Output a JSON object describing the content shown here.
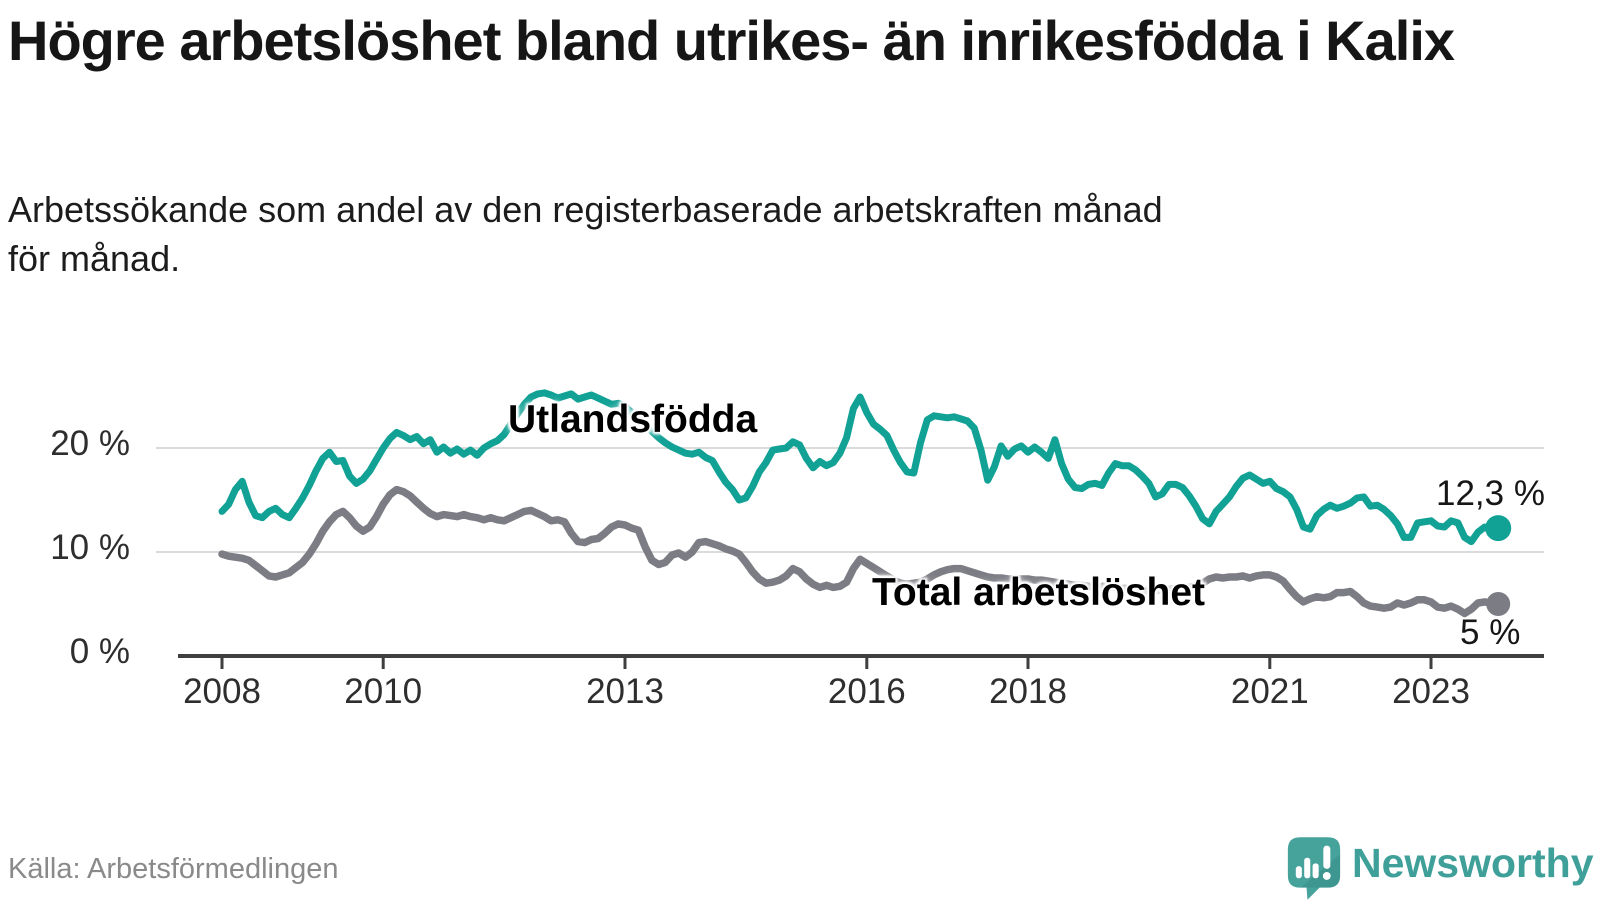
{
  "header": {
    "title": "Högre arbetslöshet bland utrikes- än inrikesfödda i Kalix",
    "subtitle_line1": "Arbetssökande som andel av den registerbaserade arbetskraften månad",
    "subtitle_line2": "för månad."
  },
  "footer": {
    "source": "Källa: Arbetsförmedlingen",
    "brand": "Newsworthy"
  },
  "colors": {
    "teal_line": "#12a195",
    "gray_line": "#7c7c84",
    "logo_teal": "#46a39c",
    "wordmark_teal": "#3f9f99",
    "gridline": "#dbdbdb",
    "axis": "#3f3f3f",
    "tick_text": "#2e2e2e",
    "title_text": "#161616",
    "source_text": "#8a8a8a"
  },
  "chart_data": {
    "type": "line",
    "title": "Högre arbetslöshet bland utrikes- än inrikesfödda i Kalix",
    "subtitle": "Arbetssökande som andel av den registerbaserade arbetskraften månad för månad.",
    "unit": "%",
    "frequency": "monthly",
    "x_start": "2008-01",
    "x_end": "2023-11",
    "ylim": [
      0,
      27.5
    ],
    "grid": "horizontal",
    "legend": "inline-labels",
    "y_ticks": [
      {
        "label": "0 %",
        "value": 0
      },
      {
        "label": "10 %",
        "value": 10
      },
      {
        "label": "20 %",
        "value": 20
      }
    ],
    "x_ticks": [
      {
        "label": "2008",
        "year": 2008
      },
      {
        "label": "2010",
        "year": 2010
      },
      {
        "label": "2013",
        "year": 2013
      },
      {
        "label": "2016",
        "year": 2016
      },
      {
        "label": "2018",
        "year": 2018
      },
      {
        "label": "2021",
        "year": 2021
      },
      {
        "label": "2023",
        "year": 2023
      }
    ],
    "series": [
      {
        "name": "Utlandsfödda",
        "color": "#12a195",
        "end_label": "12,3 %",
        "end_value": 12.3,
        "values": [
          13.9,
          14.6,
          16.0,
          16.8,
          14.8,
          13.5,
          13.3,
          13.9,
          14.2,
          13.6,
          13.3,
          14.2,
          15.2,
          16.4,
          17.8,
          19.0,
          19.6,
          18.7,
          18.8,
          17.3,
          16.6,
          17.0,
          17.8,
          18.9,
          20.0,
          20.9,
          21.5,
          21.2,
          20.8,
          21.1,
          20.4,
          20.8,
          19.6,
          20.1,
          19.5,
          19.9,
          19.4,
          19.8,
          19.3,
          20.0,
          20.4,
          20.7,
          21.3,
          22.3,
          23.3,
          24.2,
          24.9,
          25.2,
          25.3,
          25.1,
          24.8,
          25.0,
          25.2,
          24.7,
          24.9,
          25.1,
          24.8,
          24.5,
          24.2,
          24.3,
          24.0,
          23.4,
          22.8,
          22.2,
          21.6,
          21.0,
          20.5,
          20.1,
          19.8,
          19.5,
          19.4,
          19.6,
          19.1,
          18.8,
          17.7,
          16.7,
          16.0,
          15.0,
          15.2,
          16.3,
          17.7,
          18.6,
          19.8,
          19.9,
          20.0,
          20.6,
          20.3,
          19.0,
          18.1,
          18.7,
          18.3,
          18.6,
          19.5,
          21.0,
          23.8,
          24.9,
          23.4,
          22.3,
          21.8,
          21.2,
          19.8,
          18.6,
          17.7,
          17.6,
          20.5,
          22.7,
          23.1,
          23.0,
          22.9,
          23.0,
          22.8,
          22.6,
          21.9,
          19.8,
          16.9,
          18.2,
          20.2,
          19.2,
          19.9,
          20.2,
          19.6,
          20.1,
          19.6,
          19.0,
          20.8,
          18.5,
          17.0,
          16.2,
          16.1,
          16.5,
          16.6,
          16.4,
          17.6,
          18.5,
          18.3,
          18.3,
          17.9,
          17.3,
          16.6,
          15.3,
          15.6,
          16.5,
          16.5,
          16.2,
          15.4,
          14.4,
          13.2,
          12.7,
          13.9,
          14.6,
          15.3,
          16.3,
          17.1,
          17.4,
          17.0,
          16.6,
          16.8,
          16.1,
          15.8,
          15.3,
          14.1,
          12.4,
          12.2,
          13.5,
          14.1,
          14.5,
          14.2,
          14.4,
          14.7,
          15.2,
          15.3,
          14.4,
          14.5,
          14.1,
          13.5,
          12.7,
          11.4,
          11.4,
          12.8,
          12.9,
          13.0,
          12.5,
          12.4,
          13.0,
          12.8,
          11.4,
          11.0,
          11.9,
          12.4,
          12.1,
          12.3
        ]
      },
      {
        "name": "Total arbetslöshet",
        "color": "#7c7c84",
        "end_label": "5 %",
        "end_value": 5,
        "values": [
          9.8,
          9.6,
          9.5,
          9.4,
          9.2,
          8.7,
          8.2,
          7.7,
          7.6,
          7.8,
          8.0,
          8.5,
          9.0,
          9.8,
          10.8,
          12.0,
          12.9,
          13.6,
          13.9,
          13.3,
          12.5,
          12.0,
          12.4,
          13.4,
          14.6,
          15.5,
          16.0,
          15.8,
          15.4,
          14.8,
          14.2,
          13.7,
          13.4,
          13.6,
          13.5,
          13.4,
          13.6,
          13.4,
          13.3,
          13.1,
          13.3,
          13.1,
          13.0,
          13.3,
          13.6,
          13.9,
          14.0,
          13.7,
          13.4,
          13.0,
          13.1,
          12.9,
          11.8,
          11.0,
          10.9,
          11.2,
          11.3,
          11.8,
          12.4,
          12.7,
          12.6,
          12.3,
          12.1,
          10.5,
          9.2,
          8.8,
          9.0,
          9.7,
          9.9,
          9.5,
          10.0,
          10.9,
          11.0,
          10.8,
          10.6,
          10.3,
          10.1,
          9.8,
          9.0,
          8.1,
          7.4,
          7.0,
          7.1,
          7.3,
          7.7,
          8.4,
          8.1,
          7.4,
          6.9,
          6.6,
          6.8,
          6.6,
          6.7,
          7.1,
          8.4,
          9.3,
          8.9,
          8.5,
          8.1,
          7.7,
          7.3,
          7.0,
          6.9,
          7.0,
          7.1,
          7.4,
          7.8,
          8.1,
          8.3,
          8.4,
          8.4,
          8.2,
          8.0,
          7.8,
          7.6,
          7.5,
          7.5,
          7.4,
          7.4,
          7.4,
          7.4,
          7.3,
          7.3,
          7.2,
          7.1,
          7.0,
          6.9,
          6.8,
          6.8,
          6.7,
          6.6,
          6.7,
          6.7,
          6.6,
          6.5,
          6.5,
          6.4,
          6.3,
          6.3,
          6.3,
          6.4,
          6.4,
          6.5,
          6.6,
          6.6,
          6.8,
          7.0,
          7.4,
          7.6,
          7.5,
          7.6,
          7.6,
          7.7,
          7.5,
          7.7,
          7.8,
          7.8,
          7.6,
          7.2,
          6.4,
          5.7,
          5.2,
          5.5,
          5.7,
          5.6,
          5.7,
          6.1,
          6.1,
          6.2,
          5.7,
          5.1,
          4.8,
          4.7,
          4.6,
          4.7,
          5.1,
          4.9,
          5.1,
          5.4,
          5.4,
          5.2,
          4.7,
          4.6,
          4.8,
          4.5,
          4.1,
          4.5,
          5.1,
          5.2,
          5.1,
          5.0
        ]
      }
    ]
  }
}
